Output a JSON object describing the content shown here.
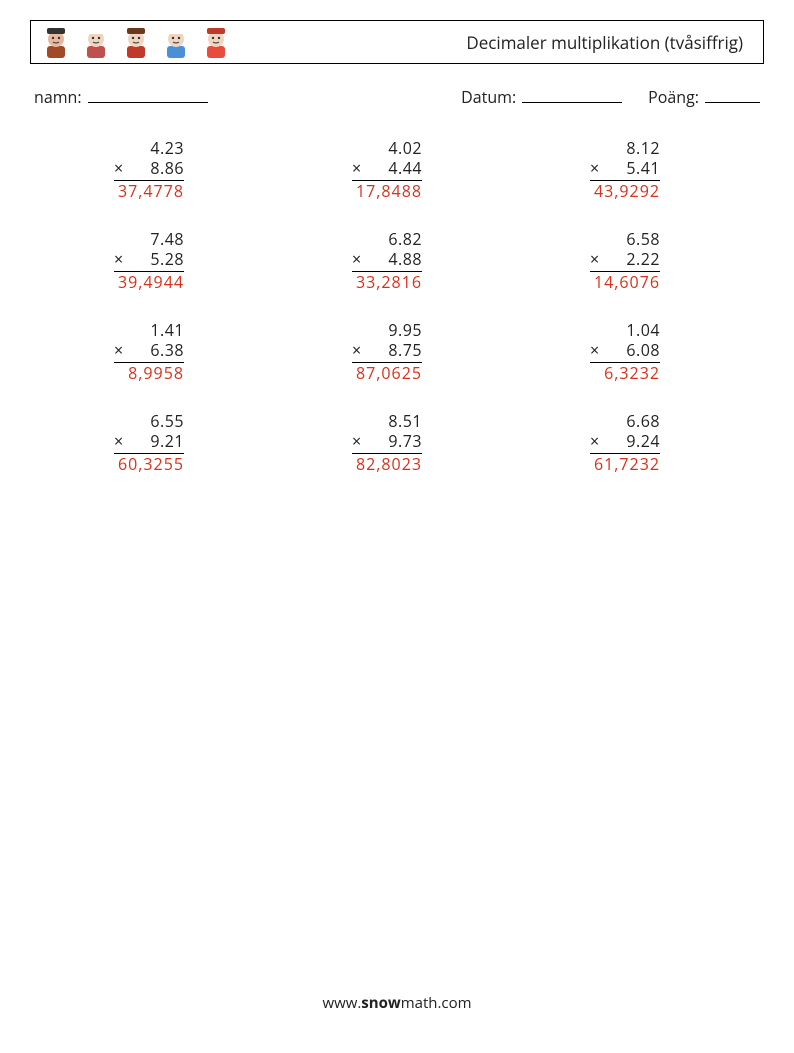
{
  "header": {
    "title": "Decimaler multiplikation (tvåsiffrig)",
    "icons": [
      {
        "name": "graduate-icon",
        "bg": "#e6b89c",
        "accent": "#a14a2a",
        "hat": "#333"
      },
      {
        "name": "chef-icon",
        "bg": "#f0d5c0",
        "accent": "#c0504d",
        "hat": "#fff"
      },
      {
        "name": "woman-icon",
        "bg": "#f0d5c0",
        "accent": "#c0392b",
        "hat": "#6b3a1e"
      },
      {
        "name": "nurse-icon",
        "bg": "#f0d5c0",
        "accent": "#4a90d9",
        "hat": "#fff"
      },
      {
        "name": "firefighter-icon",
        "bg": "#f0d5c0",
        "accent": "#e74c3c",
        "hat": "#c0392b"
      }
    ]
  },
  "info": {
    "name_label": "namn:",
    "date_label": "Datum:",
    "score_label": "Poäng:"
  },
  "styling": {
    "text_color": "#222222",
    "answer_color": "#d9301a",
    "border_color": "#000000",
    "font_size_body": 16,
    "font_size_title": 17,
    "operator": "×",
    "decimal_sep_answer": ",",
    "columns": 3,
    "rows": 4
  },
  "problems": [
    {
      "a": "4.23",
      "b": "8.86",
      "ans": "37,4778"
    },
    {
      "a": "4.02",
      "b": "4.44",
      "ans": "17,8488"
    },
    {
      "a": "8.12",
      "b": "5.41",
      "ans": "43,9292"
    },
    {
      "a": "7.48",
      "b": "5.28",
      "ans": "39,4944"
    },
    {
      "a": "6.82",
      "b": "4.88",
      "ans": "33,2816"
    },
    {
      "a": "6.58",
      "b": "2.22",
      "ans": "14,6076"
    },
    {
      "a": "1.41",
      "b": "6.38",
      "ans": "8,9958"
    },
    {
      "a": "9.95",
      "b": "8.75",
      "ans": "87,0625"
    },
    {
      "a": "1.04",
      "b": "6.08",
      "ans": "6,3232"
    },
    {
      "a": "6.55",
      "b": "9.21",
      "ans": "60,3255"
    },
    {
      "a": "8.51",
      "b": "9.73",
      "ans": "82,8023"
    },
    {
      "a": "6.68",
      "b": "9.24",
      "ans": "61,7232"
    }
  ],
  "footer": {
    "prefix": "www.",
    "bold": "snow",
    "suffix": "math.com"
  }
}
